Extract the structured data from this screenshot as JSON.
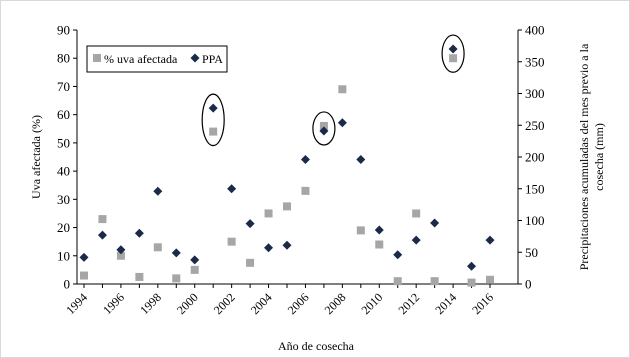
{
  "chart_data": {
    "type": "scatter",
    "xlabel": "Año de cosecha",
    "ylabel_left": "Uva afectada (%)",
    "ylabel_right": "Precipitaciones acumuladas del mes previo a la cosecha (mm)",
    "xlim": [
      1994,
      2016
    ],
    "ylim_left": [
      0,
      90
    ],
    "ylim_right": [
      0,
      400
    ],
    "x_ticks": [
      "1994",
      "1996",
      "1998",
      "2000",
      "2002",
      "2004",
      "2006",
      "2008",
      "2010",
      "2012",
      "2014",
      "2016"
    ],
    "y_left_ticks": [
      "0",
      "10",
      "20",
      "30",
      "40",
      "50",
      "60",
      "70",
      "80",
      "90"
    ],
    "y_right_ticks": [
      "0",
      "50",
      "100",
      "150",
      "200",
      "250",
      "300",
      "350",
      "400"
    ],
    "legend": {
      "position": "top-left",
      "entries": [
        "% uva afectada",
        "PPA"
      ]
    },
    "series": [
      {
        "name": "% uva afectada",
        "axis": "left",
        "marker": "square",
        "color": "#a6a6a6",
        "x": [
          1994,
          1995,
          1996,
          1997,
          1998,
          1999,
          2000,
          2001,
          2002,
          2003,
          2004,
          2005,
          2006,
          2007,
          2008,
          2009,
          2010,
          2011,
          2012,
          2013,
          2014,
          2015,
          2016
        ],
        "y": [
          3,
          23,
          10,
          2.5,
          13,
          2,
          5,
          54,
          15,
          7.5,
          25,
          27.5,
          33,
          56,
          69,
          19,
          14,
          1,
          25,
          1,
          80,
          0.5,
          1.5
        ]
      },
      {
        "name": "PPA",
        "axis": "right",
        "marker": "diamond",
        "color": "#1a2a48",
        "x": [
          1994,
          1995,
          1996,
          1997,
          1998,
          1999,
          2000,
          2001,
          2002,
          2003,
          2004,
          2005,
          2006,
          2007,
          2008,
          2009,
          2010,
          2011,
          2012,
          2013,
          2014,
          2015,
          2016
        ],
        "y": [
          42,
          77,
          54,
          80,
          146,
          49,
          38,
          277,
          150,
          95,
          57,
          61,
          196,
          241,
          254,
          196,
          85,
          46,
          69,
          96,
          370,
          28,
          69
        ]
      }
    ],
    "highlighted_years": [
      2001,
      2007,
      2014
    ]
  }
}
